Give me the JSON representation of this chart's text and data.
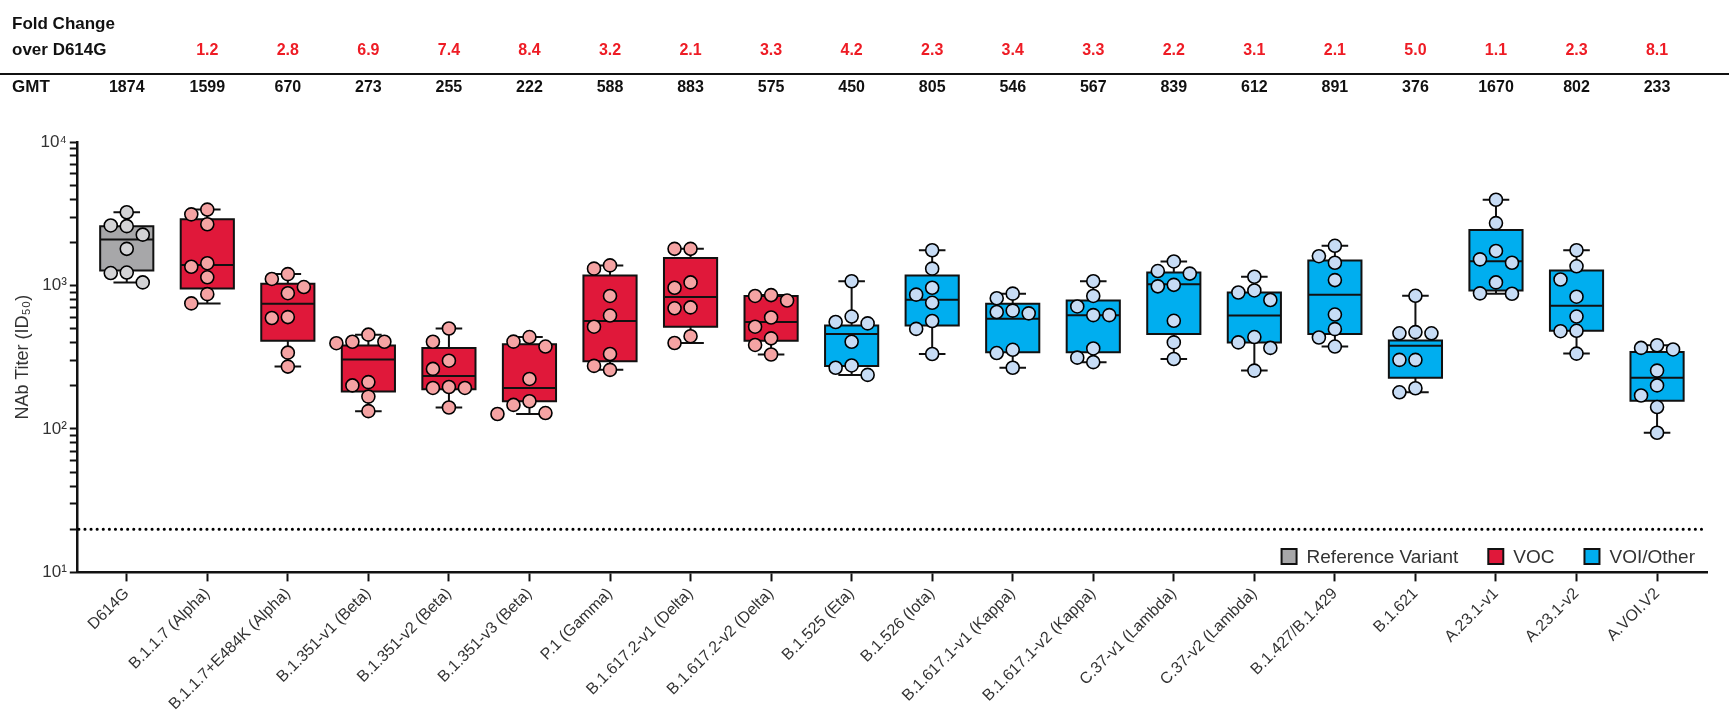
{
  "chart_data": {
    "type": "box",
    "ylabel": "NAb Titer (ID₅₀)",
    "categories": [
      "D614G",
      "B.1.1.7 (Alpha)",
      "B.1.1.7+E484K (Alpha)",
      "B.1.351-v1 (Beta)",
      "B.1.351-v2 (Beta)",
      "B.1.351-v3 (Beta)",
      "P.1 (Gamma)",
      "B.1.617.2-v1 (Delta)",
      "B.1.617.2-v2 (Delta)",
      "B.1.525 (Eta)",
      "B.1.526 (Iota)",
      "B.1.617.1-v1 (Kappa)",
      "B.1.617.1-v2 (Kappa)",
      "C.37-v1 (Lambda)",
      "C.37-v2 (Lambda)",
      "B.1.427/B.1.429",
      "B.1.621",
      "A.23.1-v1",
      "A.23.1-v2",
      "A.VOI.V2"
    ],
    "log": true,
    "ylim": [
      10,
      10000
    ],
    "yticks": [
      {
        "value": 10,
        "label": "10¹"
      },
      {
        "value": 20,
        "label": null
      },
      {
        "value": 30,
        "label": null
      },
      {
        "value": 40,
        "label": null
      },
      {
        "value": 50,
        "label": null
      },
      {
        "value": 60,
        "label": null
      },
      {
        "value": 70,
        "label": null
      },
      {
        "value": 80,
        "label": null
      },
      {
        "value": 90,
        "label": null
      },
      {
        "value": 100,
        "label": "10²"
      },
      {
        "value": 200,
        "label": null
      },
      {
        "value": 300,
        "label": null
      },
      {
        "value": 400,
        "label": null
      },
      {
        "value": 500,
        "label": null
      },
      {
        "value": 600,
        "label": null
      },
      {
        "value": 700,
        "label": null
      },
      {
        "value": 800,
        "label": null
      },
      {
        "value": 900,
        "label": null
      },
      {
        "value": 1000,
        "label": "10³"
      },
      {
        "value": 2000,
        "label": null
      },
      {
        "value": 3000,
        "label": null
      },
      {
        "value": 4000,
        "label": null
      },
      {
        "value": 5000,
        "label": null
      },
      {
        "value": 6000,
        "label": null
      },
      {
        "value": 7000,
        "label": null
      },
      {
        "value": 8000,
        "label": null
      },
      {
        "value": 9000,
        "label": null
      },
      {
        "value": 10000,
        "label": "10⁴"
      }
    ],
    "legend": "bottom right",
    "marker": "circle",
    "series": [
      {
        "name": "Reference Variant",
        "color": "#a7a7a9",
        "boxes": [
          {
            "low": 1050,
            "q1": 1270,
            "median": 2090,
            "q3": 2590,
            "high": 3240
          },
          null,
          null,
          null,
          null,
          null,
          null,
          null,
          null,
          null,
          null,
          null,
          null,
          null,
          null,
          null,
          null,
          null,
          null,
          null
        ]
      },
      {
        "name": "VOC",
        "color": "#e0183a",
        "boxes": [
          null,
          {
            "low": 750,
            "q1": 953,
            "median": 1390,
            "q3": 2900,
            "high": 3380
          },
          {
            "low": 272,
            "q1": 411,
            "median": 747,
            "q3": 1028,
            "high": 1200
          },
          {
            "low": 133,
            "q1": 182,
            "median": 305,
            "q3": 381,
            "high": 454
          },
          {
            "low": 141,
            "q1": 189,
            "median": 234,
            "q3": 367,
            "high": 501
          },
          {
            "low": 127,
            "q1": 156,
            "median": 193,
            "q3": 390,
            "high": 437
          },
          {
            "low": 258,
            "q1": 296,
            "median": 565,
            "q3": 1175,
            "high": 1380
          },
          {
            "low": 397,
            "q1": 516,
            "median": 832,
            "q3": 1552,
            "high": 1800
          },
          {
            "low": 330,
            "q1": 412,
            "median": 556,
            "q3": 845,
            "high": 857
          },
          null,
          null,
          null,
          null,
          null,
          null,
          null,
          null,
          null,
          null,
          null
        ]
      },
      {
        "name": "VOI/Other",
        "color": "#00aeef",
        "boxes": [
          null,
          null,
          null,
          null,
          null,
          null,
          null,
          null,
          null,
          {
            "low": 238,
            "q1": 275,
            "median": 459,
            "q3": 525,
            "high": 1070
          },
          {
            "low": 333,
            "q1": 525,
            "median": 796,
            "q3": 1175,
            "high": 1760
          },
          {
            "low": 267,
            "q1": 343,
            "median": 586,
            "q3": 747,
            "high": 877
          },
          {
            "low": 292,
            "q1": 343,
            "median": 621,
            "q3": 785,
            "high": 1070
          },
          {
            "low": 307,
            "q1": 458,
            "median": 1021,
            "q3": 1230,
            "high": 1470
          },
          {
            "low": 255,
            "q1": 401,
            "median": 618,
            "q3": 893,
            "high": 1150
          },
          {
            "low": 375,
            "q1": 458,
            "median": 863,
            "q3": 1493,
            "high": 1890
          },
          {
            "low": 180,
            "q1": 227,
            "median": 380,
            "q3": 414,
            "high": 847
          },
          {
            "low": 875,
            "q1": 923,
            "median": 1472,
            "q3": 2432,
            "high": 3960
          },
          {
            "low": 335,
            "q1": 483,
            "median": 721,
            "q3": 1271,
            "high": 1760
          },
          {
            "low": 94,
            "q1": 157,
            "median": 227,
            "q3": 344,
            "high": 383
          }
        ]
      },
      {
        "type": "scatter",
        "color": "#d3d3d5",
        "x": [
          "D614G",
          "D614G",
          "D614G",
          "D614G",
          "D614G",
          "D614G",
          "D614G",
          "D614G"
        ],
        "values": [
          3240,
          2620,
          2590,
          2260,
          1800,
          1230,
          1220,
          1050
        ]
      },
      {
        "type": "scatter",
        "color": "#f5a3a3",
        "x": [
          "B.1.1.7 (Alpha)",
          "B.1.1.7 (Alpha)",
          "B.1.1.7 (Alpha)",
          "B.1.1.7 (Alpha)",
          "B.1.1.7 (Alpha)",
          "B.1.1.7 (Alpha)",
          "B.1.1.7 (Alpha)",
          "B.1.1.7 (Alpha)",
          "B.1.1.7+E484K (Alpha)",
          "B.1.1.7+E484K (Alpha)",
          "B.1.1.7+E484K (Alpha)",
          "B.1.1.7+E484K (Alpha)",
          "B.1.1.7+E484K (Alpha)",
          "B.1.1.7+E484K (Alpha)",
          "B.1.1.7+E484K (Alpha)",
          "B.1.1.7+E484K (Alpha)",
          "B.1.351-v1 (Beta)",
          "B.1.351-v1 (Beta)",
          "B.1.351-v1 (Beta)",
          "B.1.351-v1 (Beta)",
          "B.1.351-v1 (Beta)",
          "B.1.351-v1 (Beta)",
          "B.1.351-v1 (Beta)",
          "B.1.351-v1 (Beta)",
          "B.1.351-v2 (Beta)",
          "B.1.351-v2 (Beta)",
          "B.1.351-v2 (Beta)",
          "B.1.351-v2 (Beta)",
          "B.1.351-v2 (Beta)",
          "B.1.351-v2 (Beta)",
          "B.1.351-v2 (Beta)",
          "B.1.351-v2 (Beta)",
          "B.1.351-v3 (Beta)",
          "B.1.351-v3 (Beta)",
          "B.1.351-v3 (Beta)",
          "B.1.351-v3 (Beta)",
          "B.1.351-v3 (Beta)",
          "B.1.351-v3 (Beta)",
          "B.1.351-v3 (Beta)",
          "B.1.351-v3 (Beta)",
          "P.1 (Gamma)",
          "P.1 (Gamma)",
          "P.1 (Gamma)",
          "P.1 (Gamma)",
          "P.1 (Gamma)",
          "P.1 (Gamma)",
          "P.1 (Gamma)",
          "P.1 (Gamma)",
          "B.1.617.2-v1 (Delta)",
          "B.1.617.2-v1 (Delta)",
          "B.1.617.2-v1 (Delta)",
          "B.1.617.2-v1 (Delta)",
          "B.1.617.2-v1 (Delta)",
          "B.1.617.2-v1 (Delta)",
          "B.1.617.2-v1 (Delta)",
          "B.1.617.2-v1 (Delta)",
          "B.1.617.2-v2 (Delta)",
          "B.1.617.2-v2 (Delta)",
          "B.1.617.2-v2 (Delta)",
          "B.1.617.2-v2 (Delta)",
          "B.1.617.2-v2 (Delta)",
          "B.1.617.2-v2 (Delta)",
          "B.1.617.2-v2 (Delta)",
          "B.1.617.2-v2 (Delta)"
        ],
        "values": [
          3380,
          3130,
          2670,
          1430,
          1350,
          1140,
          870,
          750,
          1200,
          1110,
          975,
          883,
          602,
          593,
          340,
          272,
          454,
          405,
          405,
          396,
          212,
          201,
          168,
          133,
          501,
          405,
          299,
          262,
          196,
          193,
          193,
          141,
          437,
          406,
          375,
          223,
          156,
          147,
          129,
          127,
          1380,
          1310,
          845,
          617,
          516,
          333,
          275,
          258,
          1800,
          1800,
          1050,
          964,
          703,
          693,
          443,
          397,
          857,
          845,
          785,
          598,
          516,
          428,
          385,
          330
        ]
      },
      {
        "type": "scatter",
        "color": "#c7dcf5",
        "x": [
          "B.1.525 (Eta)",
          "B.1.525 (Eta)",
          "B.1.525 (Eta)",
          "B.1.525 (Eta)",
          "B.1.525 (Eta)",
          "B.1.525 (Eta)",
          "B.1.525 (Eta)",
          "B.1.525 (Eta)",
          "B.1.526 (Iota)",
          "B.1.526 (Iota)",
          "B.1.526 (Iota)",
          "B.1.526 (Iota)",
          "B.1.526 (Iota)",
          "B.1.526 (Iota)",
          "B.1.526 (Iota)",
          "B.1.526 (Iota)",
          "B.1.617.1-v1 (Kappa)",
          "B.1.617.1-v1 (Kappa)",
          "B.1.617.1-v1 (Kappa)",
          "B.1.617.1-v1 (Kappa)",
          "B.1.617.1-v1 (Kappa)",
          "B.1.617.1-v1 (Kappa)",
          "B.1.617.1-v1 (Kappa)",
          "B.1.617.1-v1 (Kappa)",
          "B.1.617.1-v2 (Kappa)",
          "B.1.617.1-v2 (Kappa)",
          "B.1.617.1-v2 (Kappa)",
          "B.1.617.1-v2 (Kappa)",
          "B.1.617.1-v2 (Kappa)",
          "B.1.617.1-v2 (Kappa)",
          "B.1.617.1-v2 (Kappa)",
          "B.1.617.1-v2 (Kappa)",
          "C.37-v1 (Lambda)",
          "C.37-v1 (Lambda)",
          "C.37-v1 (Lambda)",
          "C.37-v1 (Lambda)",
          "C.37-v1 (Lambda)",
          "C.37-v1 (Lambda)",
          "C.37-v1 (Lambda)",
          "C.37-v1 (Lambda)",
          "C.37-v2 (Lambda)",
          "C.37-v2 (Lambda)",
          "C.37-v2 (Lambda)",
          "C.37-v2 (Lambda)",
          "C.37-v2 (Lambda)",
          "C.37-v2 (Lambda)",
          "C.37-v2 (Lambda)",
          "C.37-v2 (Lambda)",
          "B.1.427/B.1.429",
          "B.1.427/B.1.429",
          "B.1.427/B.1.429",
          "B.1.427/B.1.429",
          "B.1.427/B.1.429",
          "B.1.427/B.1.429",
          "B.1.427/B.1.429",
          "B.1.427/B.1.429",
          "B.1.621",
          "B.1.621",
          "B.1.621",
          "B.1.621",
          "B.1.621",
          "B.1.621",
          "B.1.621",
          "B.1.621",
          "A.23.1-v1",
          "A.23.1-v1",
          "A.23.1-v1",
          "A.23.1-v1",
          "A.23.1-v1",
          "A.23.1-v1",
          "A.23.1-v1",
          "A.23.1-v1",
          "A.23.1-v2",
          "A.23.1-v2",
          "A.23.1-v2",
          "A.23.1-v2",
          "A.23.1-v2",
          "A.23.1-v2",
          "A.23.1-v2",
          "A.23.1-v2",
          "A.VOI.V2",
          "A.VOI.V2",
          "A.VOI.V2",
          "A.VOI.V2",
          "A.VOI.V2",
          "A.VOI.V2",
          "A.VOI.V2",
          "A.VOI.V2"
        ],
        "values": [
          1070,
          607,
          556,
          544,
          405,
          277,
          267,
          238,
          1760,
          1310,
          964,
          863,
          757,
          565,
          498,
          333,
          877,
          815,
          668,
          653,
          639,
          356,
          338,
          267,
          1070,
          845,
          714,
          621,
          621,
          364,
          314,
          292,
          1470,
          1260,
          1210,
          1010,
          986,
          567,
          401,
          307,
          1150,
          923,
          893,
          792,
          437,
          401,
          367,
          255,
          1890,
          1600,
          1440,
          1090,
          627,
          496,
          434,
          375,
          847,
          473,
          464,
          464,
          303,
          303,
          192,
          180,
          3960,
          2720,
          1740,
          1520,
          1440,
          1050,
          881,
          875,
          1760,
          1360,
          1100,
          835,
          607,
          483,
          480,
          335,
          383,
          367,
          358,
          255,
          201,
          171,
          142,
          94
        ]
      }
    ],
    "ref_lines": [
      {
        "axis": "y",
        "value": 20,
        "line_style": "dotted",
        "color": "#000000"
      }
    ],
    "annotations": [
      "Fold Change over D614G",
      "GMT",
      "1.2",
      "2.8",
      "6.9",
      "7.4",
      "8.4",
      "3.2",
      "2.1",
      "3.3",
      "4.2",
      "2.3",
      "3.4",
      "3.3",
      "2.2",
      "3.1",
      "2.1",
      "5.0",
      "1.1",
      "2.3",
      "8.1",
      "1874",
      "1599",
      "670",
      "273",
      "255",
      "222",
      "588",
      "883",
      "575",
      "450",
      "805",
      "546",
      "567",
      "839",
      "612",
      "891",
      "376",
      "1670",
      "802",
      "233"
    ]
  }
}
